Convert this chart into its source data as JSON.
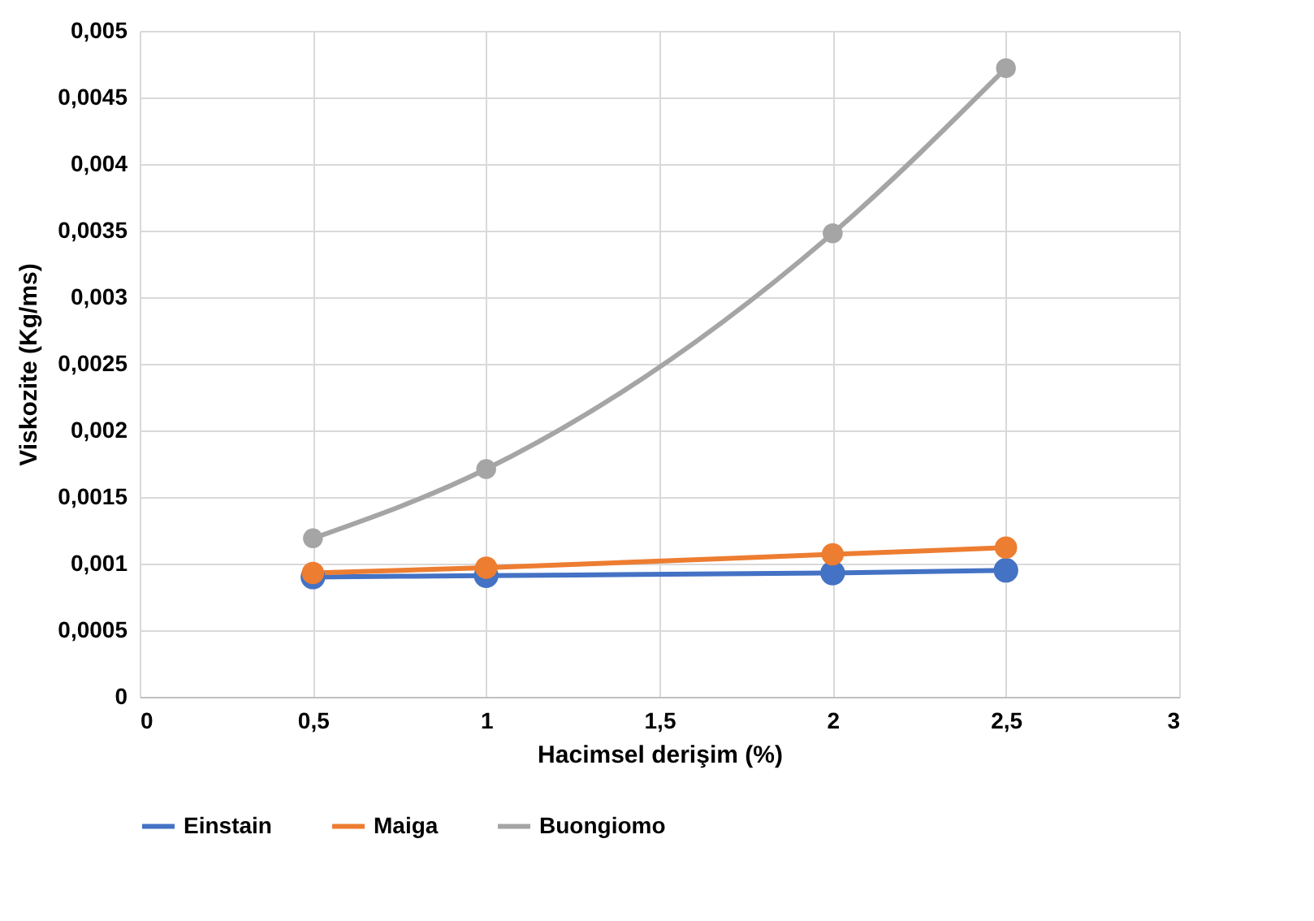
{
  "chart_data": {
    "type": "line",
    "xlabel": "Hacimsel derişim (%)",
    "ylabel": "Viskozite  (Kg/ms)",
    "x": [
      0.5,
      1,
      2,
      2.5
    ],
    "series": [
      {
        "name": "Einstain",
        "color": "#4472c4",
        "values": [
          0.0009,
          0.00091,
          0.00093,
          0.00095
        ]
      },
      {
        "name": "Maiga",
        "color": "#ed7d31",
        "values": [
          0.00093,
          0.00097,
          0.00107,
          0.00112
        ]
      },
      {
        "name": "Buongiomo",
        "color": "#a5a5a5",
        "values": [
          0.00119,
          0.00171,
          0.00348,
          0.00472
        ]
      }
    ],
    "xlim": [
      0,
      3
    ],
    "xticks": [
      0,
      {
        "value": 0.5,
        "label": "0,5"
      },
      1,
      {
        "value": 1.5,
        "label": "1,5"
      },
      2,
      {
        "value": 2.5,
        "label": "2,5"
      },
      3
    ],
    "ylim": [
      0,
      0.005
    ],
    "yticks": [
      0,
      {
        "value": 0.0005,
        "label": "0,0005"
      },
      {
        "value": 0.001,
        "label": "0,001"
      },
      {
        "value": 0.0015,
        "label": "0,0015"
      },
      {
        "value": 0.002,
        "label": "0,002"
      },
      {
        "value": 0.0025,
        "label": "0,0025"
      },
      {
        "value": 0.003,
        "label": "0,003"
      },
      {
        "value": 0.0035,
        "label": "0,0035"
      },
      {
        "value": 0.004,
        "label": "0,004"
      },
      {
        "value": 0.0045,
        "label": "0,0045"
      },
      {
        "value": 0.005,
        "label": "0,005"
      }
    ],
    "grid": true,
    "legend": "bottom",
    "marker": "circle",
    "line_style": "solid"
  }
}
